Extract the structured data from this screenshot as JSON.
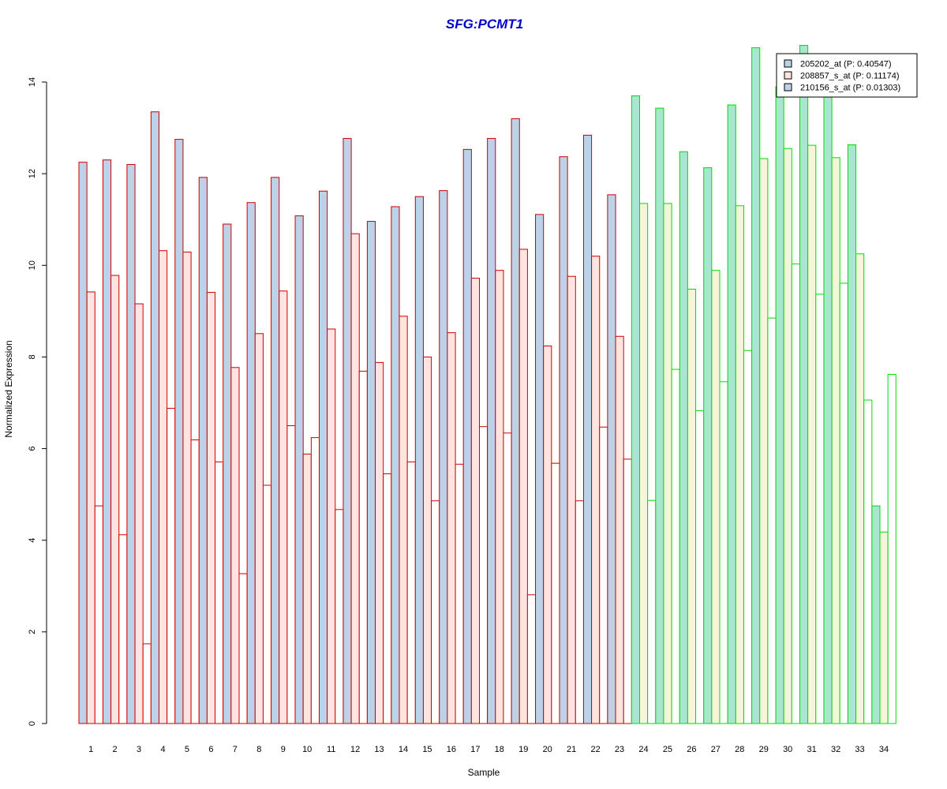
{
  "chart_data": {
    "type": "bar",
    "title": "SFG:PCMT1",
    "title_color": "#0000cc",
    "xlabel": "Sample",
    "ylabel": "Normalized Expression",
    "ylim": [
      0,
      14
    ],
    "yticks": [
      0,
      2,
      4,
      6,
      8,
      10,
      12,
      14
    ],
    "grid": false,
    "legend_position": "top-right",
    "categories": [
      "1",
      "2",
      "3",
      "4",
      "5",
      "6",
      "7",
      "8",
      "9",
      "10",
      "11",
      "12",
      "13",
      "14",
      "15",
      "16",
      "17",
      "18",
      "19",
      "20",
      "21",
      "22",
      "23",
      "24",
      "25",
      "26",
      "27",
      "28",
      "29",
      "30",
      "31",
      "32",
      "33",
      "34"
    ],
    "group_colors": [
      {
        "samples": "1-23",
        "border": "#cc0000"
      },
      {
        "samples": "24-34",
        "border": "#00dd00"
      }
    ],
    "series": [
      {
        "name": "205202_at (P: 0.40547)",
        "fill": "#bcd2e8",
        "values": [
          12.25,
          12.3,
          12.2,
          13.35,
          12.75,
          11.92,
          10.9,
          11.37,
          11.92,
          11.08,
          11.62,
          12.77,
          10.96,
          11.28,
          11.5,
          11.63,
          12.53,
          12.77,
          13.2,
          11.11,
          12.37,
          12.84,
          11.54,
          13.7,
          13.43,
          12.48,
          12.13,
          13.5,
          14.75,
          13.9,
          14.8,
          13.8,
          12.63,
          4.75
        ]
      },
      {
        "name": "208857_s_at (P: 0.11174)",
        "fill": "#ffe4e1",
        "values": [
          9.42,
          9.78,
          9.16,
          10.32,
          10.29,
          9.41,
          7.77,
          8.51,
          9.44,
          5.88,
          8.61,
          10.69,
          7.88,
          8.89,
          8.0,
          8.53,
          9.72,
          9.89,
          10.35,
          8.24,
          9.76,
          10.2,
          8.45,
          11.35,
          11.35,
          9.48,
          9.89,
          11.3,
          12.33,
          12.55,
          12.62,
          12.35,
          10.25,
          4.18
        ]
      },
      {
        "name": "210156_s_at (P: 0.01303)",
        "fill": "#ffffff",
        "values": [
          4.75,
          4.12,
          1.74,
          6.88,
          6.19,
          5.71,
          3.27,
          5.2,
          6.5,
          6.24,
          4.67,
          7.69,
          5.45,
          5.71,
          4.86,
          5.66,
          6.48,
          6.34,
          2.81,
          5.68,
          4.86,
          6.47,
          5.77,
          4.87,
          7.73,
          6.83,
          7.46,
          8.14,
          8.85,
          10.03,
          9.37,
          9.61,
          7.06,
          7.62
        ]
      }
    ]
  }
}
